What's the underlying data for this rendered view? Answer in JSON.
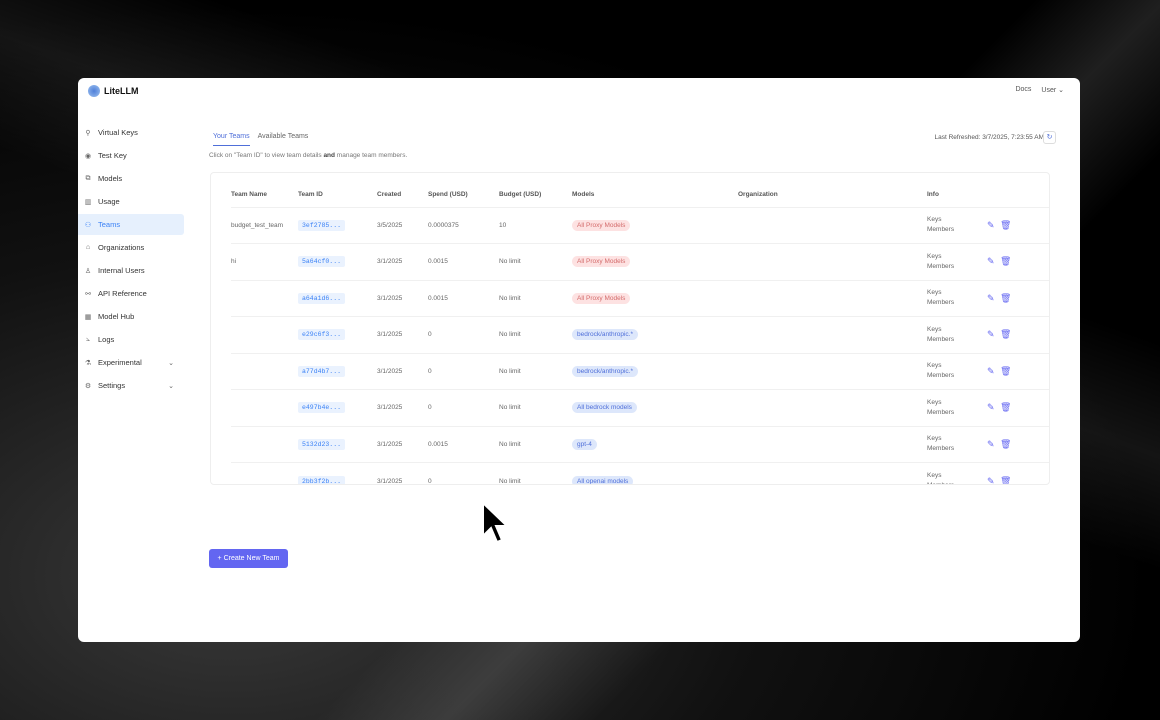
{
  "app": {
    "name": "LiteLLM"
  },
  "header": {
    "docs": "Docs",
    "user": "User"
  },
  "sidebar": {
    "items": [
      {
        "label": "Virtual Keys",
        "icon": "key-icon",
        "glyph": "⚲"
      },
      {
        "label": "Test Key",
        "icon": "play-circle-icon",
        "glyph": "◉"
      },
      {
        "label": "Models",
        "icon": "models-icon",
        "glyph": "⧉"
      },
      {
        "label": "Usage",
        "icon": "bar-chart-icon",
        "glyph": "▥"
      },
      {
        "label": "Teams",
        "icon": "team-icon",
        "glyph": "⚇",
        "active": true
      },
      {
        "label": "Organizations",
        "icon": "bank-icon",
        "glyph": "⌂"
      },
      {
        "label": "Internal Users",
        "icon": "user-icon",
        "glyph": "♙"
      },
      {
        "label": "API Reference",
        "icon": "api-icon",
        "glyph": "⚯"
      },
      {
        "label": "Model Hub",
        "icon": "grid-icon",
        "glyph": "▦"
      },
      {
        "label": "Logs",
        "icon": "line-chart-icon",
        "glyph": "⦣"
      },
      {
        "label": "Experimental",
        "icon": "experiment-icon",
        "glyph": "⚗",
        "chevron": true
      },
      {
        "label": "Settings",
        "icon": "gear-icon",
        "glyph": "⚙",
        "chevron": true
      }
    ]
  },
  "tabs": [
    {
      "label": "Your Teams",
      "active": true
    },
    {
      "label": "Available Teams"
    }
  ],
  "hint": {
    "pre": "Click on \"Team ID\" to view team details ",
    "bold": "and",
    "post": " manage team members."
  },
  "refresh": {
    "text": "Last Refreshed: 3/7/2025, 7:23:55 AM"
  },
  "table": {
    "columns": [
      "Team Name",
      "Team ID",
      "Created",
      "Spend (USD)",
      "Budget (USD)",
      "Models",
      "Organization",
      "Info"
    ],
    "rows": [
      {
        "name": "budget_test_team",
        "id": "3ef2785...",
        "created": "3/5/2025",
        "spend": "0.0000375",
        "budget": "10",
        "model": "All Proxy Models",
        "color": "red"
      },
      {
        "name": "hi",
        "id": "5a64cf0...",
        "created": "3/1/2025",
        "spend": "0.0015",
        "budget": "No limit",
        "model": "All Proxy Models",
        "color": "red"
      },
      {
        "name": "",
        "id": "a64a1d6...",
        "created": "3/1/2025",
        "spend": "0.0015",
        "budget": "No limit",
        "model": "All Proxy Models",
        "color": "red"
      },
      {
        "name": "",
        "id": "e29c6f3...",
        "created": "3/1/2025",
        "spend": "0",
        "budget": "No limit",
        "model": "bedrock/anthropic.*",
        "color": "blue"
      },
      {
        "name": "",
        "id": "a77d4b7...",
        "created": "3/1/2025",
        "spend": "0",
        "budget": "No limit",
        "model": "bedrock/anthropic.*",
        "color": "blue"
      },
      {
        "name": "",
        "id": "e497b4e...",
        "created": "3/1/2025",
        "spend": "0",
        "budget": "No limit",
        "model": "All bedrock models",
        "color": "blue"
      },
      {
        "name": "",
        "id": "5132d23...",
        "created": "3/1/2025",
        "spend": "0.0015",
        "budget": "No limit",
        "model": "gpt-4",
        "color": "blue"
      },
      {
        "name": "",
        "id": "2bb3f2b...",
        "created": "3/1/2025",
        "spend": "0",
        "budget": "No limit",
        "model": "All openai models",
        "color": "blue"
      }
    ],
    "info_keys": "Keys",
    "info_members": "Members"
  },
  "create_button": "+ Create New Team"
}
